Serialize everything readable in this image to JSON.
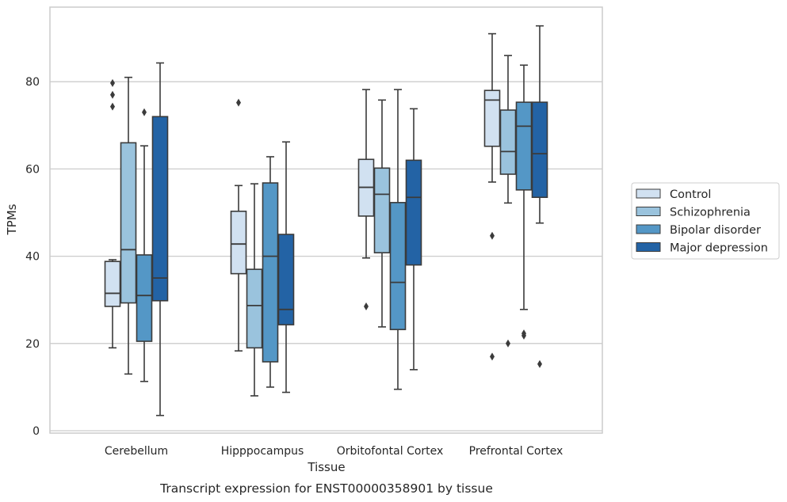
{
  "chart_data": {
    "type": "box",
    "caption": "Transcript expression for ENST00000358901 by tissue",
    "xlabel": "Tissue",
    "ylabel": "TPMs",
    "ylim": [
      -0.8,
      97
    ],
    "yticks": [
      0,
      20,
      40,
      60,
      80
    ],
    "grid": "horizontal",
    "legend_position": "right",
    "categories": [
      "Cerebellum",
      "Hipppocampus",
      "Orbitofontal Cortex",
      "Prefrontal Cortex"
    ],
    "series": [
      {
        "name": "Control",
        "color": "#d1e1f1",
        "boxes": [
          {
            "whislo": 19,
            "q1": 28.5,
            "med": 31.5,
            "q3": 38.8,
            "whishi": 39.2,
            "fliers": [
              74.3,
              77,
              79.7
            ]
          },
          {
            "whislo": 18.3,
            "q1": 36,
            "med": 42.8,
            "q3": 50.3,
            "whishi": 56.2,
            "fliers": [
              75.2
            ]
          },
          {
            "whislo": 39.6,
            "q1": 49.2,
            "med": 55.8,
            "q3": 62.2,
            "whishi": 78.2,
            "fliers": [
              28.5
            ]
          },
          {
            "whislo": 57,
            "q1": 65.2,
            "med": 75.8,
            "q3": 78,
            "whishi": 91,
            "fliers": [
              44.7,
              17
            ]
          }
        ]
      },
      {
        "name": "Schizophrenia",
        "color": "#9ac3dd",
        "boxes": [
          {
            "whislo": 13,
            "q1": 29.3,
            "med": 41.5,
            "q3": 66,
            "whishi": 81,
            "fliers": []
          },
          {
            "whislo": 8,
            "q1": 19,
            "med": 28.7,
            "q3": 37,
            "whishi": 56.6,
            "fliers": []
          },
          {
            "whislo": 23.8,
            "q1": 40.8,
            "med": 54.2,
            "q3": 60.2,
            "whishi": 75.8,
            "fliers": []
          },
          {
            "whislo": 52.2,
            "q1": 58.8,
            "med": 64,
            "q3": 73.5,
            "whishi": 86,
            "fliers": [
              20
            ]
          }
        ]
      },
      {
        "name": "Bipolar disorder",
        "color": "#5497c6",
        "boxes": [
          {
            "whislo": 11.3,
            "q1": 20.5,
            "med": 31,
            "q3": 40.3,
            "whishi": 65.3,
            "fliers": [
              73
            ]
          },
          {
            "whislo": 10,
            "q1": 15.8,
            "med": 40,
            "q3": 56.8,
            "whishi": 62.8,
            "fliers": []
          },
          {
            "whislo": 9.5,
            "q1": 23.2,
            "med": 34,
            "q3": 52.3,
            "whishi": 78.2,
            "fliers": []
          },
          {
            "whislo": 27.8,
            "q1": 55.2,
            "med": 69.8,
            "q3": 75.3,
            "whishi": 83.8,
            "fliers": [
              22.3,
              21.8
            ]
          }
        ]
      },
      {
        "name": "Major depression",
        "color": "#2363a5",
        "boxes": [
          {
            "whislo": 3.5,
            "q1": 29.8,
            "med": 35,
            "q3": 72,
            "whishi": 84.3,
            "fliers": []
          },
          {
            "whislo": 8.8,
            "q1": 24.3,
            "med": 27.8,
            "q3": 45,
            "whishi": 66.2,
            "fliers": []
          },
          {
            "whislo": 14,
            "q1": 38,
            "med": 53.5,
            "q3": 62,
            "whishi": 73.8,
            "fliers": []
          },
          {
            "whislo": 47.6,
            "q1": 53.5,
            "med": 63.5,
            "q3": 75.3,
            "whishi": 92.8,
            "fliers": [
              15.3
            ]
          }
        ]
      }
    ]
  }
}
